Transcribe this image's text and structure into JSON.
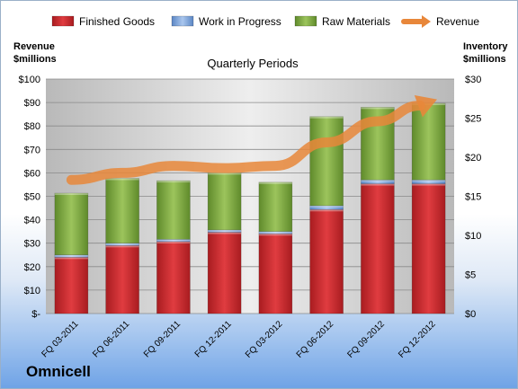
{
  "chart_data": {
    "type": "bar",
    "title": "",
    "xlabel": "Quarterly Periods",
    "ylabel": "Revenue $millions",
    "ylabel_right": "Inventory $millions",
    "company": "Omnicell",
    "categories": [
      "FQ 03-2011",
      "FQ 06-2011",
      "FQ 09-2011",
      "FQ 12-2011",
      "FQ 03-2012",
      "FQ 06-2012",
      "FQ 09-2012",
      "FQ 12-2012"
    ],
    "ylim": [
      0,
      100
    ],
    "ylim_right": [
      0,
      30
    ],
    "left_ticks": [
      "$-",
      "$10",
      "$20",
      "$30",
      "$40",
      "$50",
      "$60",
      "$70",
      "$80",
      "$90",
      "$100"
    ],
    "right_ticks": [
      "$0",
      "$5",
      "$10",
      "$15",
      "$20",
      "$25",
      "$30"
    ],
    "grid": true,
    "legend_position": "top",
    "series": [
      {
        "name": "Finished Goods",
        "color": "#c8262c",
        "axis": "right",
        "kind": "stacked-bar",
        "values": [
          7.2,
          8.7,
          9.2,
          10.4,
          10.2,
          13.3,
          16.6,
          16.6
        ]
      },
      {
        "name": "Work in Progress",
        "color": "#6f9bd8",
        "axis": "right",
        "kind": "stacked-bar",
        "values": [
          0.3,
          0.3,
          0.3,
          0.3,
          0.3,
          0.5,
          0.5,
          0.5
        ]
      },
      {
        "name": "Raw Materials",
        "color": "#77a33b",
        "axis": "right",
        "kind": "stacked-bar",
        "values": [
          7.9,
          8.3,
          7.5,
          7.3,
          6.3,
          11.4,
          9.3,
          9.8
        ]
      },
      {
        "name": "Revenue",
        "color": "#e8873a",
        "axis": "left",
        "kind": "line",
        "values": [
          57,
          60,
          63,
          62,
          63,
          73,
          82,
          90
        ]
      }
    ]
  }
}
